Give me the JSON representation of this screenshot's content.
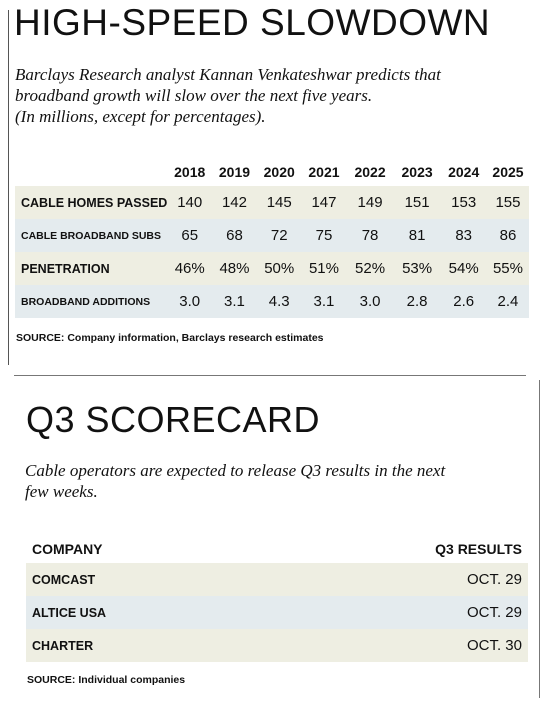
{
  "section1": {
    "title": "HIGH-SPEED SLOWDOWN",
    "dek": [
      "Barclays Research analyst Kannan Venkateshwar predicts that",
      "broadband growth will slow over the next five years.",
      "(In millions, except for percentages)."
    ],
    "years": [
      "2018",
      "2019",
      "2020",
      "2021",
      "2022",
      "2023",
      "2024",
      "2025"
    ],
    "rows": [
      {
        "label": "CABLE HOMES PASSED",
        "values": [
          "140",
          "142",
          "145",
          "147",
          "149",
          "151",
          "153",
          "155"
        ]
      },
      {
        "label": "CABLE BROADBAND SUBS",
        "values": [
          "65",
          "68",
          "72",
          "75",
          "78",
          "81",
          "83",
          "86"
        ]
      },
      {
        "label": "PENETRATION",
        "values": [
          "46%",
          "48%",
          "50%",
          "51%",
          "52%",
          "53%",
          "54%",
          "55%"
        ]
      },
      {
        "label": "BROADBAND ADDITIONS",
        "values": [
          "3.0",
          "3.1",
          "4.3",
          "3.1",
          "3.0",
          "2.8",
          "2.6",
          "2.4"
        ]
      }
    ],
    "source": "SOURCE: Company information, Barclays research estimates"
  },
  "section2": {
    "title": "Q3 SCORECARD",
    "dek": [
      "Cable operators are expected to release Q3 results in the next",
      "few weeks."
    ],
    "col_company": "COMPANY",
    "col_results": "Q3 RESULTS",
    "rows": [
      {
        "company": "COMCAST",
        "date": "OCT. 29"
      },
      {
        "company": "ALTICE USA",
        "date": "OCT. 29"
      },
      {
        "company": "CHARTER",
        "date": "OCT. 30"
      }
    ],
    "source": "SOURCE: Individual companies"
  }
}
